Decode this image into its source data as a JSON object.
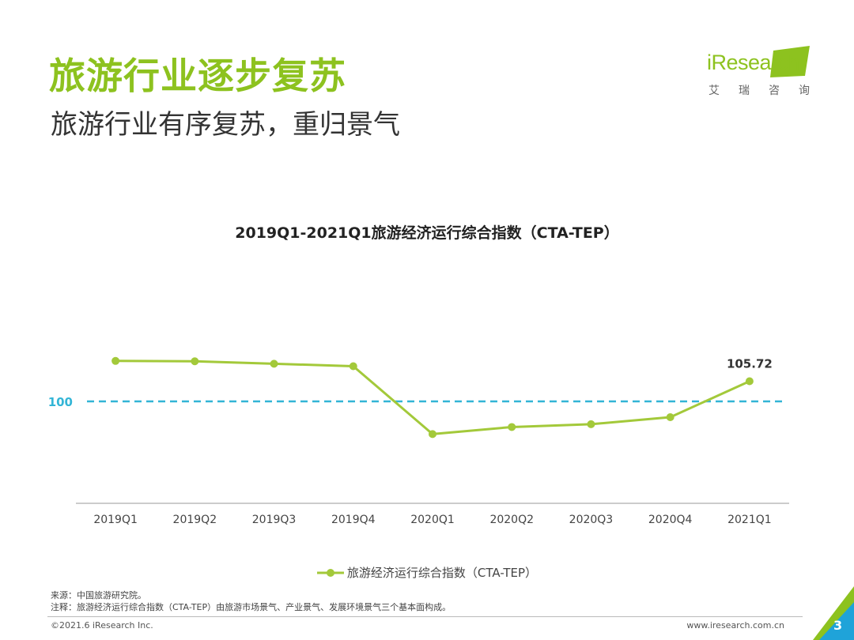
{
  "header": {
    "title": "旅游行业逐步复苏",
    "subtitle": "旅游行业有序复苏，重归景气"
  },
  "logo": {
    "text": "iResearch",
    "cn_chars": [
      "艾",
      "瑞",
      "咨",
      "询"
    ]
  },
  "chart_data": {
    "type": "line",
    "title": "2019Q1-2021Q1旅游经济运行综合指数（CTA-TEP）",
    "categories": [
      "2019Q1",
      "2019Q2",
      "2019Q3",
      "2019Q4",
      "2020Q1",
      "2020Q2",
      "2020Q3",
      "2020Q4",
      "2021Q1"
    ],
    "series": [
      {
        "name": "旅游经济运行综合指数（CTA-TEP）",
        "values": [
          111.5,
          111.4,
          110.7,
          110.0,
          90.7,
          92.7,
          93.5,
          95.5,
          105.72
        ],
        "color": "#a3c93a"
      }
    ],
    "reference_line": {
      "value": 100,
      "label": "100",
      "color": "#33b5d6"
    },
    "data_labels": [
      {
        "category": "2021Q1",
        "label": "105.72"
      }
    ],
    "ylim": [
      71,
      140
    ],
    "legend_position": "bottom",
    "grid": false
  },
  "notes": {
    "source": "来源：中国旅游研究院。",
    "note": "注释：旅游经济运行综合指数（CTA-TEP）由旅游市场景气、产业景气、发展环境景气三个基本面构成。"
  },
  "footer": {
    "copyright": "©2021.6 iResearch Inc.",
    "website": "www.iresearch.com.cn",
    "page_number": "3"
  },
  "colors": {
    "title_green": "#8dc21f",
    "corner_blue": "#1fa3d9",
    "corner_green": "#8dc21f"
  }
}
